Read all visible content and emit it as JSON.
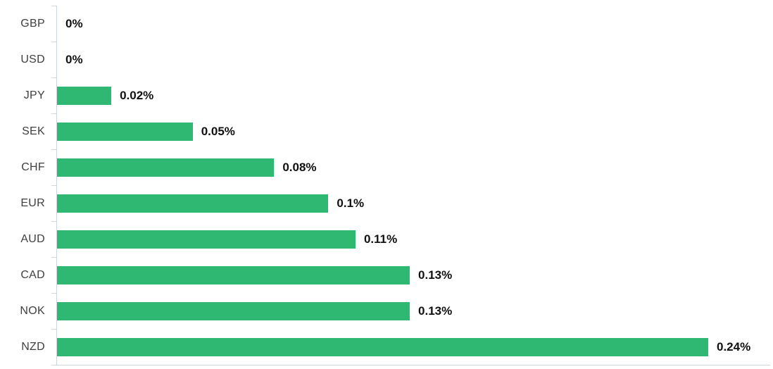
{
  "chart_data": {
    "type": "bar",
    "orientation": "horizontal",
    "title": "",
    "xlabel": "",
    "ylabel": "",
    "categories": [
      "GBP",
      "USD",
      "JPY",
      "SEK",
      "CHF",
      "EUR",
      "AUD",
      "CAD",
      "NOK",
      "NZD"
    ],
    "values": [
      0,
      0,
      0.02,
      0.05,
      0.08,
      0.1,
      0.11,
      0.13,
      0.13,
      0.24
    ],
    "value_labels": [
      "0%",
      "0%",
      "0.02%",
      "0.05%",
      "0.08%",
      "0.1%",
      "0.11%",
      "0.13%",
      "0.13%",
      "0.24%"
    ],
    "xlim": [
      0,
      0.24
    ],
    "grid": false,
    "legend": false,
    "colors": {
      "bar": "#2eb872",
      "axis": "#ccd6dd",
      "category_label": "#404040",
      "value_label": "#111111",
      "background": "#ffffff"
    }
  }
}
